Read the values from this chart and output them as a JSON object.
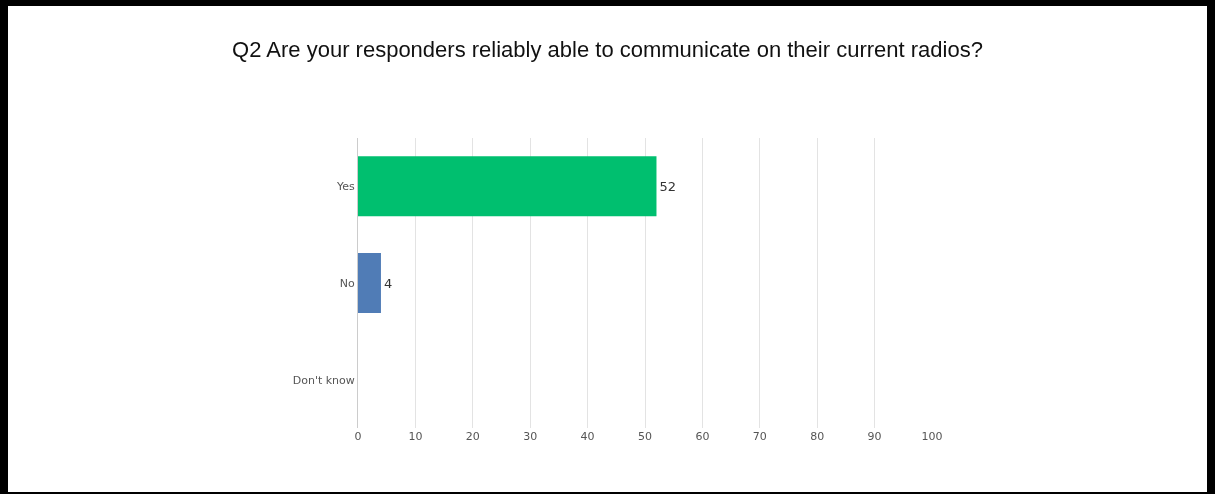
{
  "chart_data": {
    "type": "bar",
    "orientation": "horizontal",
    "title": "Q2 Are your responders reliably able to communicate on their current radios?",
    "categories": [
      "Yes",
      "No",
      "Don't know"
    ],
    "values": [
      52,
      4,
      0
    ],
    "colors": [
      "#00bf6f",
      "#507cb6",
      "#507cb6"
    ],
    "value_labels": [
      "52",
      "4",
      null
    ],
    "xlim": [
      0,
      100
    ],
    "xticks": [
      0,
      10,
      20,
      30,
      40,
      50,
      60,
      70,
      80,
      90,
      100
    ],
    "grid": "x"
  }
}
